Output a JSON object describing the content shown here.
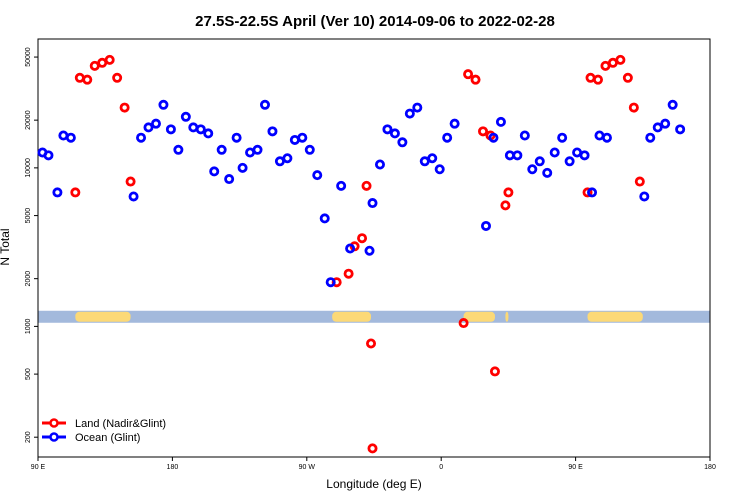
{
  "chart_data": {
    "type": "scatter",
    "title": "27.5S-22.5S April (Ver 10)   2014-09-06 to 2022-02-28",
    "xlabel": "Longitude (deg E)",
    "ylabel": "N Total",
    "y_scale": "log",
    "xlim": [
      90,
      540
    ],
    "ylim": [
      150,
      65000
    ],
    "x_ticks": [
      {
        "value": 90,
        "label": "90 E"
      },
      {
        "value": 180,
        "label": "180"
      },
      {
        "value": 270,
        "label": "90 W"
      },
      {
        "value": 360,
        "label": "0"
      },
      {
        "value": 450,
        "label": "90 E"
      },
      {
        "value": 540,
        "label": "180"
      }
    ],
    "y_ticks": [
      {
        "value": 200,
        "label": "200"
      },
      {
        "value": 500,
        "label": "500"
      },
      {
        "value": 1000,
        "label": "1000"
      },
      {
        "value": 2000,
        "label": "2000"
      },
      {
        "value": 5000,
        "label": "5000"
      },
      {
        "value": 10000,
        "label": "10000"
      },
      {
        "value": 20000,
        "label": "20000"
      },
      {
        "value": 50000,
        "label": "50000"
      }
    ],
    "legend": {
      "position": "bottom-left"
    },
    "series": [
      {
        "name": "Land (Nadir&Glint)",
        "color": "#ff0000",
        "points": [
          [
            115,
            7000
          ],
          [
            118,
            37000
          ],
          [
            123,
            36000
          ],
          [
            128,
            44000
          ],
          [
            133,
            46000
          ],
          [
            138,
            48000
          ],
          [
            143,
            37000
          ],
          [
            148,
            24000
          ],
          [
            152,
            8200
          ],
          [
            290,
            1900
          ],
          [
            298,
            2150
          ],
          [
            302,
            3200
          ],
          [
            307,
            3600
          ],
          [
            310,
            7700
          ],
          [
            313,
            780
          ],
          [
            314,
            170
          ],
          [
            375,
            1050
          ],
          [
            378,
            39000
          ],
          [
            383,
            36000
          ],
          [
            388,
            17000
          ],
          [
            393,
            16000
          ],
          [
            396,
            520
          ],
          [
            403,
            5800
          ],
          [
            405,
            7000
          ],
          [
            458,
            7000
          ],
          [
            460,
            37000
          ],
          [
            465,
            36000
          ],
          [
            470,
            44000
          ],
          [
            475,
            46000
          ],
          [
            480,
            48000
          ],
          [
            485,
            37000
          ],
          [
            489,
            24000
          ],
          [
            493,
            8200
          ]
        ]
      },
      {
        "name": "Ocean (Glint)",
        "color": "#0000ff",
        "points": [
          [
            93,
            12500
          ],
          [
            97,
            12000
          ],
          [
            103,
            7000
          ],
          [
            107,
            16000
          ],
          [
            112,
            15500
          ],
          [
            154,
            6600
          ],
          [
            159,
            15500
          ],
          [
            164,
            18000
          ],
          [
            169,
            19000
          ],
          [
            174,
            25000
          ],
          [
            179,
            17500
          ],
          [
            184,
            13000
          ],
          [
            189,
            21000
          ],
          [
            194,
            18000
          ],
          [
            199,
            17500
          ],
          [
            204,
            16500
          ],
          [
            208,
            9500
          ],
          [
            213,
            13000
          ],
          [
            218,
            8500
          ],
          [
            223,
            15500
          ],
          [
            227,
            10000
          ],
          [
            232,
            12500
          ],
          [
            237,
            13000
          ],
          [
            242,
            25000
          ],
          [
            247,
            17000
          ],
          [
            252,
            11000
          ],
          [
            257,
            11500
          ],
          [
            262,
            15000
          ],
          [
            267,
            15500
          ],
          [
            272,
            13000
          ],
          [
            277,
            9000
          ],
          [
            282,
            4800
          ],
          [
            286,
            1900
          ],
          [
            293,
            7700
          ],
          [
            299,
            3100
          ],
          [
            312,
            3000
          ],
          [
            314,
            6000
          ],
          [
            319,
            10500
          ],
          [
            324,
            17500
          ],
          [
            329,
            16500
          ],
          [
            334,
            14500
          ],
          [
            339,
            22000
          ],
          [
            344,
            24000
          ],
          [
            349,
            11000
          ],
          [
            354,
            11500
          ],
          [
            359,
            9800
          ],
          [
            364,
            15500
          ],
          [
            369,
            19000
          ],
          [
            390,
            4300
          ],
          [
            395,
            15500
          ],
          [
            400,
            19500
          ],
          [
            406,
            12000
          ],
          [
            411,
            12000
          ],
          [
            416,
            16000
          ],
          [
            421,
            9800
          ],
          [
            426,
            11000
          ],
          [
            431,
            9300
          ],
          [
            436,
            12500
          ],
          [
            441,
            15500
          ],
          [
            446,
            11000
          ],
          [
            451,
            12500
          ],
          [
            456,
            12000
          ],
          [
            461,
            7000
          ],
          [
            466,
            16000
          ],
          [
            471,
            15500
          ],
          [
            496,
            6600
          ],
          [
            500,
            15500
          ],
          [
            505,
            18000
          ],
          [
            510,
            19000
          ],
          [
            515,
            25000
          ],
          [
            520,
            17500
          ]
        ]
      }
    ],
    "surface_band": {
      "level": 1150,
      "ocean_color": "#a3b9dc",
      "land_color": "#fcd977",
      "land_segments": [
        [
          115,
          152
        ],
        [
          287,
          313
        ],
        [
          375,
          396
        ],
        [
          403,
          405
        ],
        [
          458,
          495
        ]
      ]
    }
  }
}
